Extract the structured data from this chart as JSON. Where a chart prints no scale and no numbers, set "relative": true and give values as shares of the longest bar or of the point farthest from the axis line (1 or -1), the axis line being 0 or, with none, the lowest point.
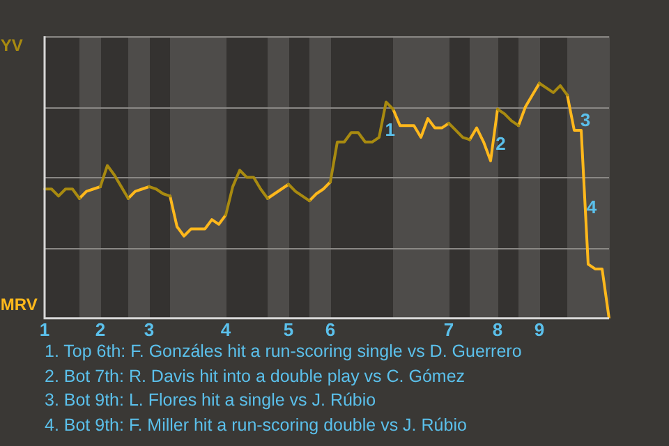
{
  "chart_data": {
    "type": "line",
    "relative": true,
    "categories": [
      "1",
      null,
      null,
      null,
      null,
      null,
      null,
      null,
      "2",
      null,
      null,
      null,
      null,
      null,
      null,
      "3",
      null,
      null,
      null,
      null,
      null,
      null,
      null,
      null,
      null,
      null,
      "4",
      null,
      null,
      null,
      null,
      null,
      null,
      null,
      null,
      "5",
      null,
      null,
      null,
      null,
      null,
      "6",
      null,
      null,
      null,
      null,
      null,
      null,
      null,
      null,
      null,
      null,
      null,
      null,
      null,
      null,
      null,
      null,
      "7",
      null,
      null,
      null,
      null,
      null,
      null,
      "8",
      null,
      null,
      null,
      null,
      null,
      "9",
      null,
      null,
      null,
      null,
      null,
      null,
      null,
      null,
      null,
      null
    ],
    "series": [
      {
        "color": "#a88a10",
        "values": [
          0.55,
          0.55,
          0.52,
          0.55,
          0.55,
          0.51,
          null,
          null,
          0.56,
          0.65,
          0.61,
          0.56,
          0.51,
          null,
          null,
          0.56,
          0.55,
          0.53,
          0.52,
          null,
          null,
          null,
          null,
          null,
          null,
          null,
          0.44,
          0.56,
          0.63,
          0.6,
          0.6,
          0.55,
          0.51,
          null,
          null,
          0.57,
          0.54,
          0.52,
          0.5,
          null,
          null,
          0.58,
          0.75,
          0.75,
          0.79,
          0.79,
          0.75,
          0.75,
          0.77,
          0.92,
          0.89,
          null,
          null,
          null,
          null,
          null,
          null,
          null,
          0.83,
          0.8,
          0.77,
          0.76,
          null,
          null,
          null,
          0.89,
          0.87,
          0.84,
          0.82,
          null,
          null,
          1,
          0.98,
          0.96,
          0.99,
          0.95,
          null,
          null,
          null,
          null,
          null,
          null
        ]
      },
      {
        "color": "#ffb81c",
        "values": [
          null,
          null,
          null,
          null,
          null,
          0.51,
          0.54,
          0.55,
          0.56,
          null,
          null,
          null,
          0.51,
          0.54,
          0.55,
          0.56,
          null,
          null,
          0.52,
          0.39,
          0.35,
          0.38,
          0.38,
          0.38,
          0.42,
          0.4,
          0.44,
          null,
          null,
          null,
          null,
          null,
          0.51,
          0.53,
          0.55,
          0.57,
          null,
          null,
          0.5,
          0.53,
          0.55,
          0.58,
          null,
          null,
          null,
          null,
          null,
          null,
          null,
          null,
          0.89,
          0.82,
          0.82,
          0.82,
          0.77,
          0.85,
          0.81,
          0.81,
          0.83,
          null,
          null,
          0.76,
          0.81,
          0.75,
          0.67,
          0.89,
          null,
          null,
          0.82,
          0.9,
          0.95,
          1,
          null,
          null,
          null,
          0.95,
          0.8,
          0.8,
          0.23,
          0.21,
          0.21,
          0
        ]
      }
    ],
    "grid": "y",
    "marker": "none",
    "legend": false,
    "annotations": [
      "YV",
      "MRV",
      "1",
      "2",
      "3",
      "4",
      "1. Top 6th: F. Gonzáles hit a run-scoring single vs D. Guerrero",
      "2. Bot 7th: R. Davis hit into a double play vs C. Gómez",
      "3. Bot 9th: L. Flores hit a single vs J. Rúbio",
      "4. Bot 9th: F. Miller hit a run-scoring double vs J. Rúbio"
    ]
  }
}
